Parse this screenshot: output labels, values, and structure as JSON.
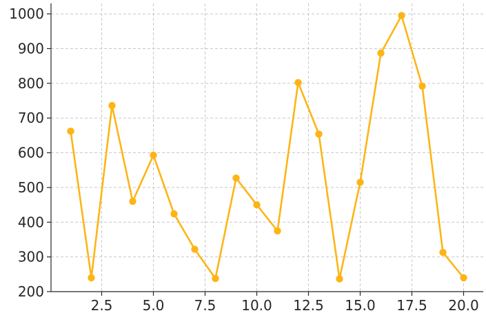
{
  "chart_data": {
    "type": "line",
    "title": "",
    "xlabel": "",
    "ylabel": "",
    "x": [
      1,
      2,
      3,
      4,
      5,
      6,
      7,
      8,
      9,
      10,
      11,
      12,
      13,
      14,
      15,
      16,
      17,
      18,
      19,
      20
    ],
    "series": [
      {
        "color": "#FDB515",
        "values": [
          662,
          240,
          736,
          460,
          593,
          424,
          322,
          238,
          527,
          450,
          375,
          802,
          654,
          237,
          515,
          887,
          995,
          792,
          313,
          240
        ]
      }
    ],
    "xticks": [
      "2.5",
      "5.0",
      "7.5",
      "10.0",
      "12.5",
      "15.0",
      "17.5",
      "20.0"
    ],
    "yticks": [
      "200",
      "300",
      "400",
      "500",
      "600",
      "700",
      "800",
      "900",
      "1000"
    ],
    "xlim": [
      0.05,
      20.95
    ],
    "ylim": [
      200,
      1030
    ],
    "grid": true,
    "legend": "none"
  }
}
